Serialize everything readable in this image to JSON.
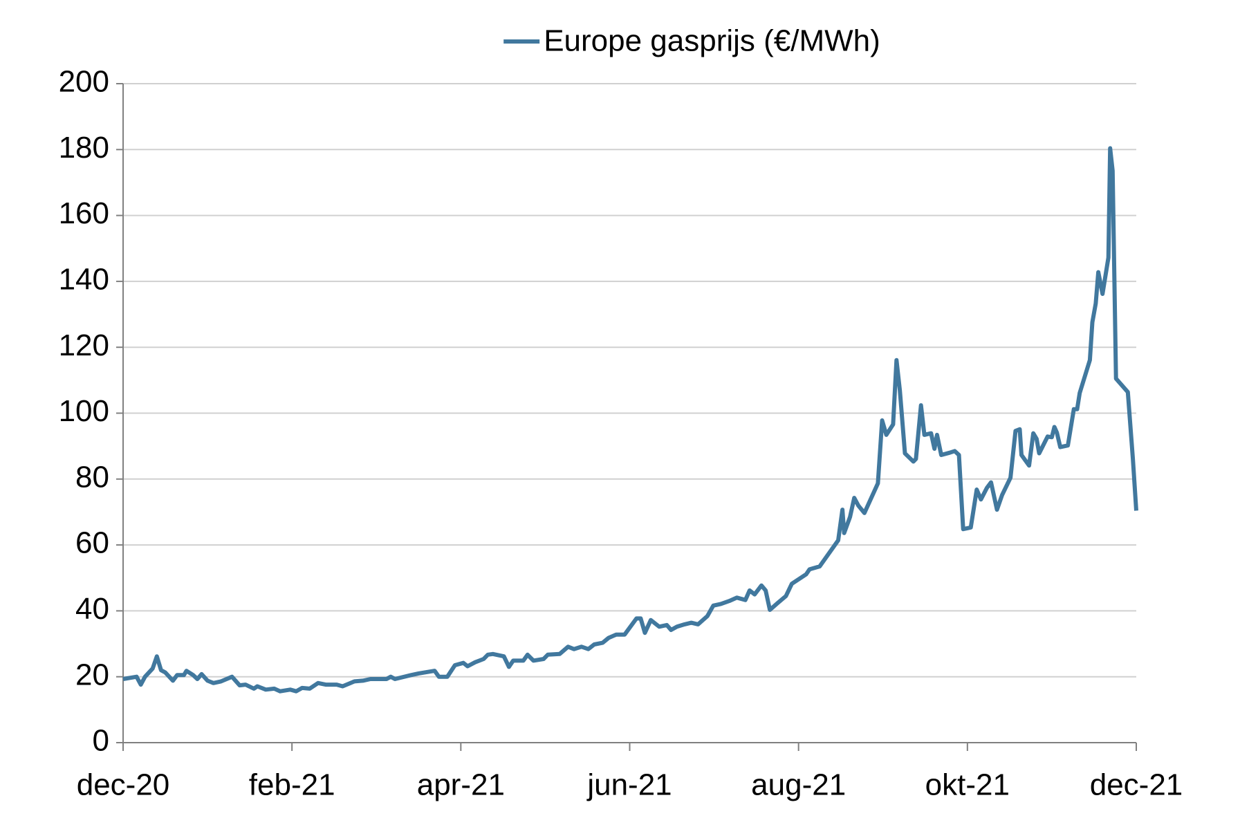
{
  "chart_data": {
    "type": "line",
    "x": [
      0,
      0.16,
      0.21,
      0.26,
      0.35,
      0.4,
      0.45,
      0.5,
      0.59,
      0.64,
      0.72,
      0.75,
      0.83,
      0.88,
      0.93,
      1.0,
      1.07,
      1.16,
      1.29,
      1.38,
      1.45,
      1.55,
      1.59,
      1.69,
      1.79,
      1.86,
      1.98,
      2.05,
      2.12,
      2.21,
      2.31,
      2.4,
      2.53,
      2.6,
      2.74,
      2.84,
      2.93,
      3.12,
      3.17,
      3.22,
      3.41,
      3.5,
      3.69,
      3.74,
      3.84,
      3.93,
      4.03,
      4.08,
      4.17,
      4.27,
      4.32,
      4.38,
      4.51,
      4.57,
      4.62,
      4.74,
      4.79,
      4.86,
      4.98,
      5.03,
      5.17,
      5.27,
      5.34,
      5.43,
      5.51,
      5.58,
      5.68,
      5.75,
      5.84,
      5.94,
      6.08,
      6.13,
      6.18,
      6.25,
      6.35,
      6.44,
      6.49,
      6.56,
      6.65,
      6.73,
      6.81,
      6.92,
      6.99,
      7.08,
      7.18,
      7.27,
      7.37,
      7.42,
      7.48,
      7.56,
      7.61,
      7.66,
      7.75,
      7.85,
      7.92,
      8.09,
      8.13,
      8.25,
      8.47,
      8.52,
      8.54,
      8.61,
      8.66,
      8.71,
      8.78,
      8.94,
      8.99,
      9.04,
      9.12,
      9.16,
      9.2,
      9.26,
      9.36,
      9.39,
      9.45,
      9.49,
      9.57,
      9.61,
      9.64,
      9.69,
      9.79,
      9.85,
      9.9,
      9.95,
      10.04,
      10.11,
      10.16,
      10.23,
      10.28,
      10.35,
      10.41,
      10.51,
      10.57,
      10.62,
      10.64,
      10.73,
      10.78,
      10.82,
      10.85,
      10.95,
      11.0,
      11.03,
      11.06,
      11.1,
      11.19,
      11.26,
      11.3,
      11.33,
      11.45,
      11.48,
      11.52,
      11.55,
      11.6,
      11.67,
      11.69,
      11.72,
      11.76,
      11.9,
      11.96,
      12.0
    ],
    "series": [
      {
        "name": "Europe gasprijs (€/MWh)",
        "color": "#41789e",
        "values": [
          19.3,
          20.0,
          17.6,
          20.0,
          22.5,
          26.2,
          22.0,
          21.3,
          18.8,
          20.5,
          20.5,
          21.8,
          20.5,
          19.3,
          20.8,
          18.8,
          18.1,
          18.6,
          20.0,
          17.4,
          17.6,
          16.4,
          17.1,
          16.1,
          16.4,
          15.6,
          16.1,
          15.6,
          16.6,
          16.4,
          18.1,
          17.6,
          17.6,
          17.1,
          18.6,
          18.8,
          19.3,
          19.3,
          20.0,
          19.3,
          20.5,
          21.0,
          21.8,
          20.0,
          20.0,
          23.5,
          24.2,
          23.2,
          24.4,
          25.4,
          26.7,
          26.9,
          26.2,
          23.0,
          24.9,
          24.9,
          26.7,
          24.9,
          25.4,
          26.7,
          26.9,
          29.1,
          28.4,
          29.1,
          28.4,
          29.8,
          30.3,
          31.8,
          32.8,
          32.8,
          37.7,
          37.7,
          33.3,
          37.2,
          35.2,
          35.7,
          34.2,
          35.2,
          35.9,
          36.4,
          35.9,
          38.4,
          41.6,
          42.1,
          43.0,
          44.0,
          43.3,
          46.2,
          45.0,
          47.7,
          46.2,
          40.3,
          42.3,
          44.5,
          48.2,
          51.1,
          52.6,
          53.5,
          61.4,
          70.7,
          63.6,
          68.5,
          74.3,
          71.9,
          69.7,
          78.7,
          97.8,
          93.4,
          96.6,
          116.1,
          106.8,
          87.8,
          85.3,
          86.1,
          102.4,
          93.4,
          93.9,
          89.2,
          93.4,
          87.3,
          88.0,
          88.5,
          87.3,
          64.8,
          65.3,
          76.8,
          73.8,
          77.3,
          79.0,
          70.7,
          75.1,
          80.4,
          94.6,
          95.1,
          87.3,
          84.1,
          93.9,
          92.2,
          87.8,
          92.9,
          92.7,
          95.8,
          94.1,
          89.7,
          90.2,
          101.2,
          101.2,
          106.1,
          116.1,
          127.6,
          133.3,
          142.8,
          136.2,
          147.2,
          180.4,
          173.6,
          110.5,
          106.4,
          86.1,
          70.4
        ]
      }
    ],
    "xlim": [
      0,
      12
    ],
    "xticks": [
      {
        "value": 0,
        "label": "dec-20"
      },
      {
        "value": 2,
        "label": "feb-21"
      },
      {
        "value": 4,
        "label": "apr-21"
      },
      {
        "value": 6,
        "label": "jun-21"
      },
      {
        "value": 8,
        "label": "aug-21"
      },
      {
        "value": 10,
        "label": "okt-21"
      },
      {
        "value": 12,
        "label": "dec-21"
      }
    ],
    "ylim": [
      0,
      200
    ],
    "yticks": [
      0,
      20,
      40,
      60,
      80,
      100,
      120,
      140,
      160,
      180,
      200
    ],
    "grid": true,
    "legend": "top"
  }
}
